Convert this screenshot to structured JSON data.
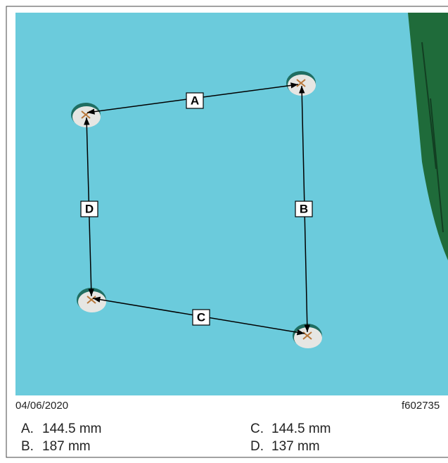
{
  "diagram": {
    "labels": [
      "A",
      "B",
      "C",
      "D"
    ],
    "date": "04/06/2020",
    "figure_id": "f602735",
    "legend": [
      {
        "key": "A.",
        "text": "144.5 mm"
      },
      {
        "key": "B.",
        "text": "187 mm"
      },
      {
        "key": "C.",
        "text": "144.5 mm"
      },
      {
        "key": "D.",
        "text": "137 mm"
      }
    ]
  }
}
